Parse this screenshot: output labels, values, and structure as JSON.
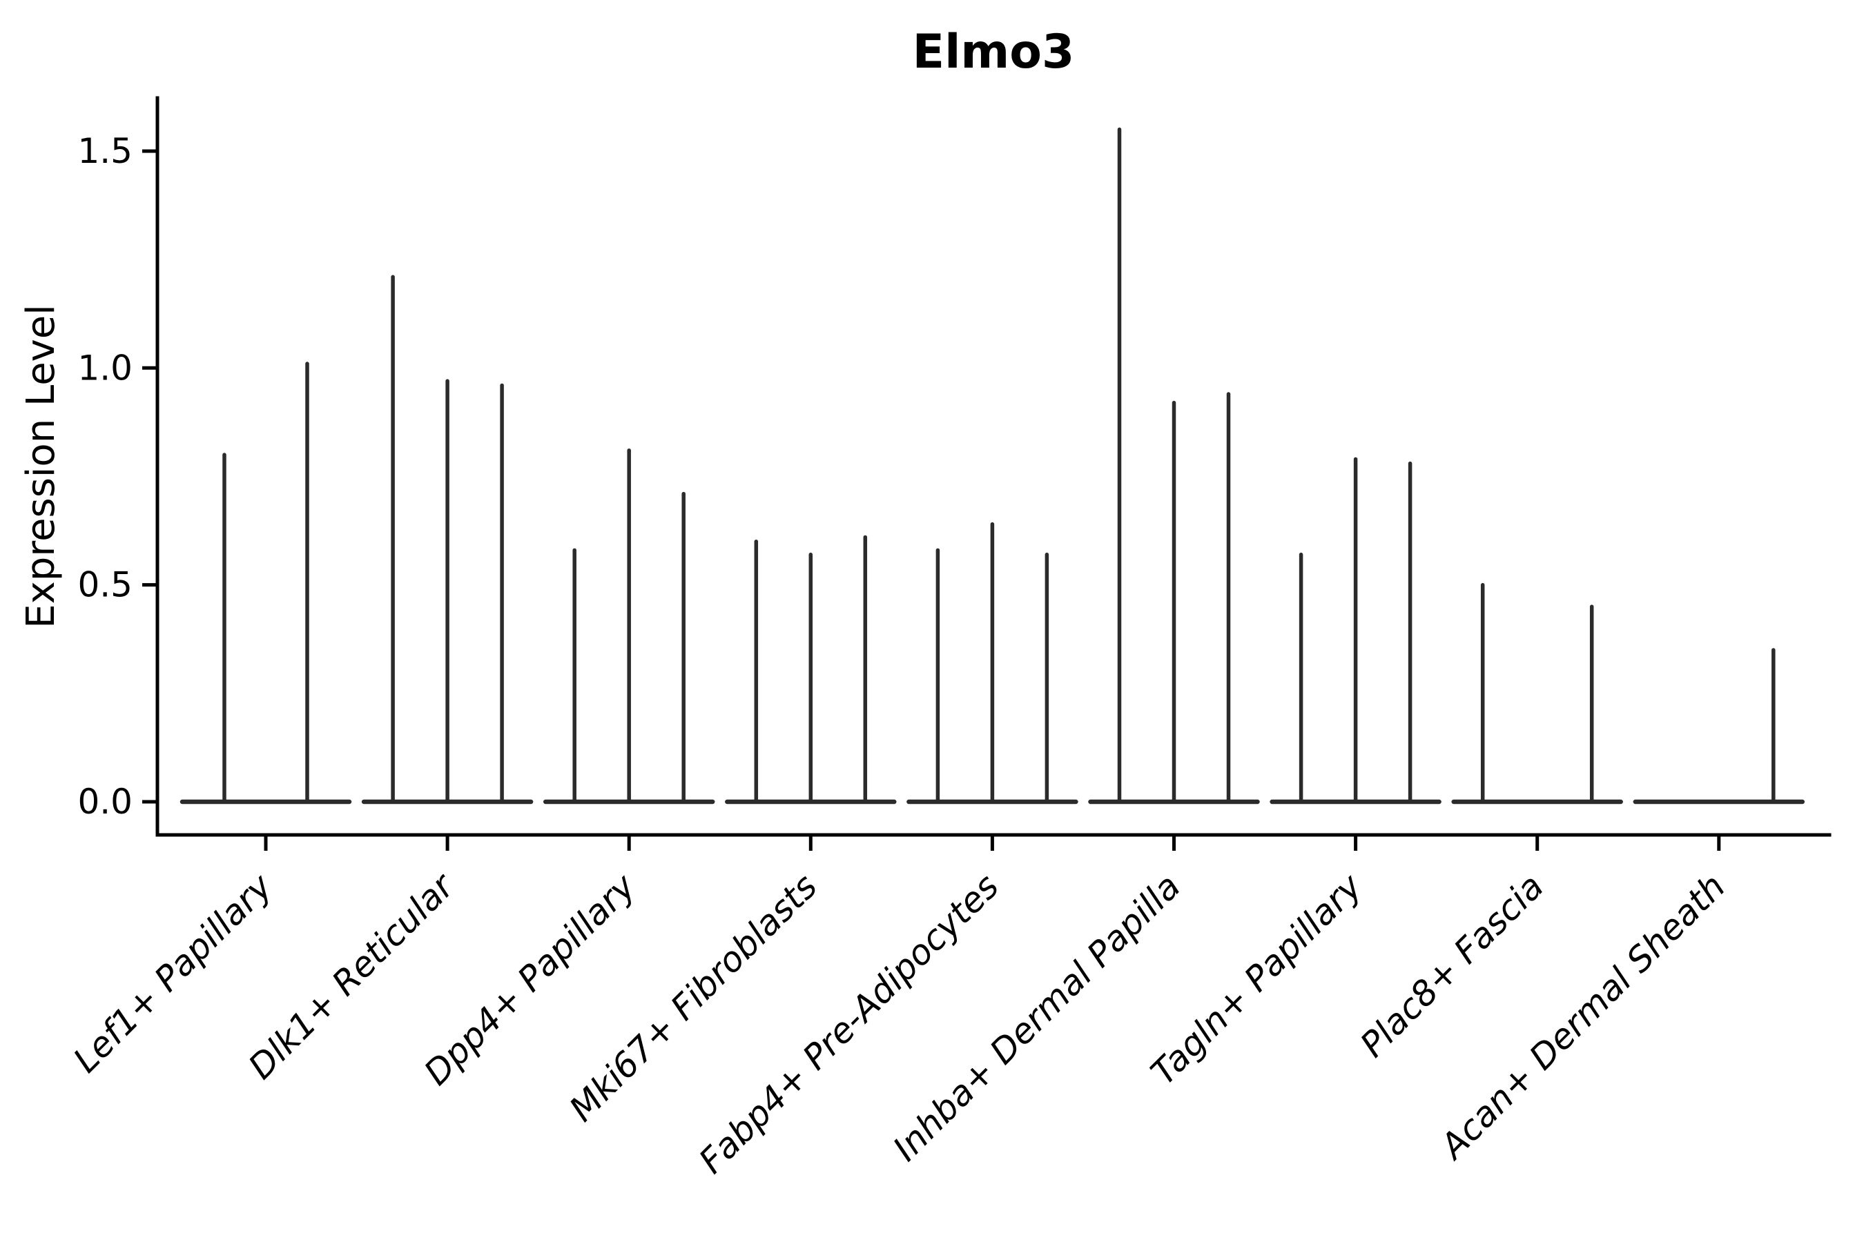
{
  "chart_data": {
    "type": "violin",
    "title": "Elmo3",
    "xlabel": "",
    "ylabel": "Expression Level",
    "ylim": [
      -0.08,
      1.62
    ],
    "yticks": [
      0.0,
      0.5,
      1.0,
      1.5
    ],
    "ytick_labels": [
      "0.0",
      "0.5",
      "1.0",
      "1.5"
    ],
    "grid": false,
    "legend": "none",
    "line_color": "#2b2b2b",
    "axis_color": "#000000",
    "background": "#ffffff",
    "categories": [
      "Lef1+ Papillary",
      "Dlk1+ Reticular",
      "Dpp4+ Papillary",
      "Mki67+ Fibroblasts",
      "Fabp4+ Pre-Adipocytes",
      "Inhba+ Dermal Papilla",
      "Tagln+ Papillary",
      "Plac8+ Fascia",
      "Acan+ Dermal Sheath"
    ],
    "groups": [
      {
        "label": "Lef1+ Papillary",
        "offsets": [
          -60,
          60
        ],
        "maxima": [
          0.8,
          1.01
        ]
      },
      {
        "label": "Dlk1+ Reticular",
        "offsets": [
          -79,
          0,
          79
        ],
        "maxima": [
          1.21,
          0.97,
          0.96
        ]
      },
      {
        "label": "Dpp4+ Papillary",
        "offsets": [
          -79,
          0,
          79
        ],
        "maxima": [
          0.58,
          0.81,
          0.71
        ]
      },
      {
        "label": "Mki67+ Fibroblasts",
        "offsets": [
          -79,
          0,
          79
        ],
        "maxima": [
          0.6,
          0.57,
          0.61
        ]
      },
      {
        "label": "Fabp4+ Pre-Adipocytes",
        "offsets": [
          -79,
          0,
          79
        ],
        "maxima": [
          0.58,
          0.64,
          0.57
        ]
      },
      {
        "label": "Inhba+ Dermal Papilla",
        "offsets": [
          -79,
          0,
          79
        ],
        "maxima": [
          1.55,
          0.92,
          0.94
        ]
      },
      {
        "label": "Tagln+ Papillary",
        "offsets": [
          -79,
          0,
          79
        ],
        "maxima": [
          0.57,
          0.79,
          0.78
        ]
      },
      {
        "label": "Plac8+ Fascia",
        "offsets": [
          -79,
          79
        ],
        "maxima": [
          0.5,
          0.45
        ]
      },
      {
        "label": "Acan+ Dermal Sheath",
        "offsets": [
          79
        ],
        "maxima": [
          0.35
        ]
      }
    ]
  }
}
